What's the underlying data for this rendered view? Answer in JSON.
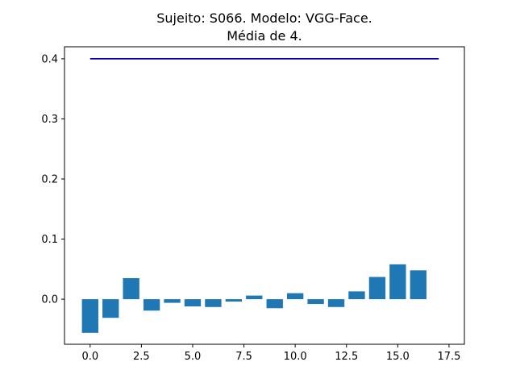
{
  "chart_data": {
    "type": "bar",
    "title_lines": [
      "Sujeito: S066. Modelo: VGG-Face.",
      "Média de 4."
    ],
    "xlabel": "",
    "ylabel": "",
    "xlim": [
      -1.25,
      18.25
    ],
    "ylim": [
      -0.075,
      0.42
    ],
    "xticks": [
      0.0,
      2.5,
      5.0,
      7.5,
      10.0,
      12.5,
      15.0,
      17.5
    ],
    "xtick_labels": [
      "0.0",
      "2.5",
      "5.0",
      "7.5",
      "10.0",
      "12.5",
      "15.0",
      "17.5"
    ],
    "yticks": [
      0.0,
      0.1,
      0.2,
      0.3,
      0.4
    ],
    "ytick_labels": [
      "0.0",
      "0.1",
      "0.2",
      "0.3",
      "0.4"
    ],
    "bar_color": "#1f77b4",
    "bar_width": 0.8,
    "bars": {
      "x": [
        0,
        1,
        2,
        3,
        4,
        5,
        6,
        7,
        8,
        9,
        10,
        11,
        12,
        13,
        14,
        15,
        16
      ],
      "values": [
        -0.056,
        -0.031,
        0.035,
        -0.019,
        -0.006,
        -0.012,
        -0.013,
        -0.004,
        0.006,
        -0.015,
        0.01,
        -0.008,
        -0.013,
        0.013,
        0.037,
        0.058,
        0.048
      ]
    },
    "line": {
      "color": "#0000aa",
      "x": [
        0,
        17
      ],
      "y": [
        0.4,
        0.4
      ]
    },
    "grid": false,
    "legend": false
  }
}
